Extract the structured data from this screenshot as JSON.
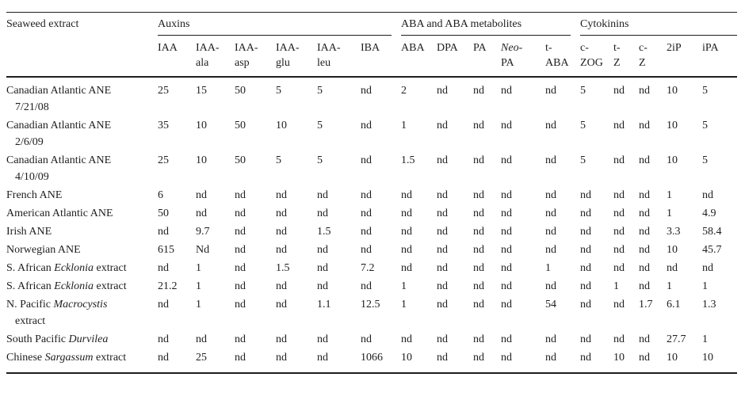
{
  "colors": {
    "ink": "#1e1e1e",
    "background": "#ffffff"
  },
  "table": {
    "row_header": "Seaweed extract",
    "groups": [
      {
        "label": "Auxins"
      },
      {
        "label": "ABA and ABA metabolites"
      },
      {
        "label": "Cytokinins"
      }
    ],
    "columns": [
      {
        "l1": "IAA",
        "l2": "",
        "i1": false
      },
      {
        "l1": "IAA-",
        "l2": "ala",
        "i1": false
      },
      {
        "l1": "IAA-",
        "l2": "asp",
        "i1": false
      },
      {
        "l1": "IAA-",
        "l2": "glu",
        "i1": false
      },
      {
        "l1": "IAA-",
        "l2": "leu",
        "i1": false
      },
      {
        "l1": "IBA",
        "l2": "",
        "i1": false
      },
      {
        "l1": "ABA",
        "l2": "",
        "i1": false
      },
      {
        "l1": "DPA",
        "l2": "",
        "i1": false
      },
      {
        "l1": "PA",
        "l2": "",
        "i1": false
      },
      {
        "l1": "Neo-",
        "l2": "PA",
        "i1": true
      },
      {
        "l1": "t-",
        "l2": "ABA",
        "i1": false
      },
      {
        "l1": "c-",
        "l2": "ZOG",
        "i1": false
      },
      {
        "l1": "t-",
        "l2": "Z",
        "i1": false
      },
      {
        "l1": "c-",
        "l2": "Z",
        "i1": false
      },
      {
        "l1": "2iP",
        "l2": "",
        "i1": false
      },
      {
        "l1": "iPA",
        "l2": "",
        "i1": false
      }
    ],
    "rows": [
      {
        "parts": [
          {
            "t": "Canadian Atlantic ANE",
            "i": false
          }
        ],
        "line2": "7/21/08",
        "cells": [
          "25",
          "15",
          "50",
          "5",
          "5",
          "nd",
          "2",
          "nd",
          "nd",
          "nd",
          "nd",
          "5",
          "nd",
          "nd",
          "10",
          "5"
        ]
      },
      {
        "parts": [
          {
            "t": "Canadian Atlantic ANE",
            "i": false
          }
        ],
        "line2": "2/6/09",
        "cells": [
          "35",
          "10",
          "50",
          "10",
          "5",
          "nd",
          "1",
          "nd",
          "nd",
          "nd",
          "nd",
          "5",
          "nd",
          "nd",
          "10",
          "5"
        ]
      },
      {
        "parts": [
          {
            "t": "Canadian Atlantic ANE",
            "i": false
          }
        ],
        "line2": "4/10/09",
        "cells": [
          "25",
          "10",
          "50",
          "5",
          "5",
          "nd",
          "1.5",
          "nd",
          "nd",
          "nd",
          "nd",
          "5",
          "nd",
          "nd",
          "10",
          "5"
        ]
      },
      {
        "parts": [
          {
            "t": "French ANE",
            "i": false
          }
        ],
        "line2": "",
        "cells": [
          "6",
          "nd",
          "nd",
          "nd",
          "nd",
          "nd",
          "nd",
          "nd",
          "nd",
          "nd",
          "nd",
          "nd",
          "nd",
          "nd",
          "1",
          "nd"
        ]
      },
      {
        "parts": [
          {
            "t": "American Atlantic ANE",
            "i": false
          }
        ],
        "line2": "",
        "cells": [
          "50",
          "nd",
          "nd",
          "nd",
          "nd",
          "nd",
          "nd",
          "nd",
          "nd",
          "nd",
          "nd",
          "nd",
          "nd",
          "nd",
          "1",
          "4.9"
        ]
      },
      {
        "parts": [
          {
            "t": "Irish ANE",
            "i": false
          }
        ],
        "line2": "",
        "cells": [
          "nd",
          "9.7",
          "nd",
          "nd",
          "1.5",
          "nd",
          "nd",
          "nd",
          "nd",
          "nd",
          "nd",
          "nd",
          "nd",
          "nd",
          "3.3",
          "58.4"
        ]
      },
      {
        "parts": [
          {
            "t": "Norwegian ANE",
            "i": false
          }
        ],
        "line2": "",
        "cells": [
          "615",
          "Nd",
          "nd",
          "nd",
          "nd",
          "nd",
          "nd",
          "nd",
          "nd",
          "nd",
          "nd",
          "nd",
          "nd",
          "nd",
          "10",
          "45.7"
        ]
      },
      {
        "parts": [
          {
            "t": "S. African ",
            "i": false
          },
          {
            "t": "Ecklonia",
            "i": true
          },
          {
            "t": " extract",
            "i": false
          }
        ],
        "line2": "",
        "cells": [
          "nd",
          "1",
          "nd",
          "1.5",
          "nd",
          "7.2",
          "nd",
          "nd",
          "nd",
          "nd",
          "1",
          "nd",
          "nd",
          "nd",
          "nd",
          "nd"
        ]
      },
      {
        "parts": [
          {
            "t": "S. African ",
            "i": false
          },
          {
            "t": "Ecklonia",
            "i": true
          },
          {
            "t": " extract",
            "i": false
          }
        ],
        "line2": "",
        "cells": [
          "21.2",
          "1",
          "nd",
          "nd",
          "nd",
          "nd",
          "1",
          "nd",
          "nd",
          "nd",
          "nd",
          "nd",
          "1",
          "nd",
          "1",
          "1"
        ]
      },
      {
        "parts": [
          {
            "t": "N. Pacific ",
            "i": false
          },
          {
            "t": "Macrocystis",
            "i": true
          }
        ],
        "line2": "extract",
        "cells": [
          "nd",
          "1",
          "nd",
          "nd",
          "1.1",
          "12.5",
          "1",
          "nd",
          "nd",
          "nd",
          "54",
          "nd",
          "nd",
          "1.7",
          "6.1",
          "1.3"
        ]
      },
      {
        "parts": [
          {
            "t": "South Pacific ",
            "i": false
          },
          {
            "t": "Durvilea",
            "i": true
          }
        ],
        "line2": "",
        "cells": [
          "nd",
          "nd",
          "nd",
          "nd",
          "nd",
          "nd",
          "nd",
          "nd",
          "nd",
          "nd",
          "nd",
          "nd",
          "nd",
          "nd",
          "27.7",
          "1"
        ]
      },
      {
        "parts": [
          {
            "t": "Chinese ",
            "i": false
          },
          {
            "t": "Sargassum",
            "i": true
          },
          {
            "t": " extract",
            "i": false
          }
        ],
        "line2": "",
        "cells": [
          "nd",
          "25",
          "nd",
          "nd",
          "nd",
          "1066",
          "10",
          "nd",
          "nd",
          "nd",
          "nd",
          "nd",
          "10",
          "nd",
          "10",
          "10"
        ]
      }
    ]
  }
}
